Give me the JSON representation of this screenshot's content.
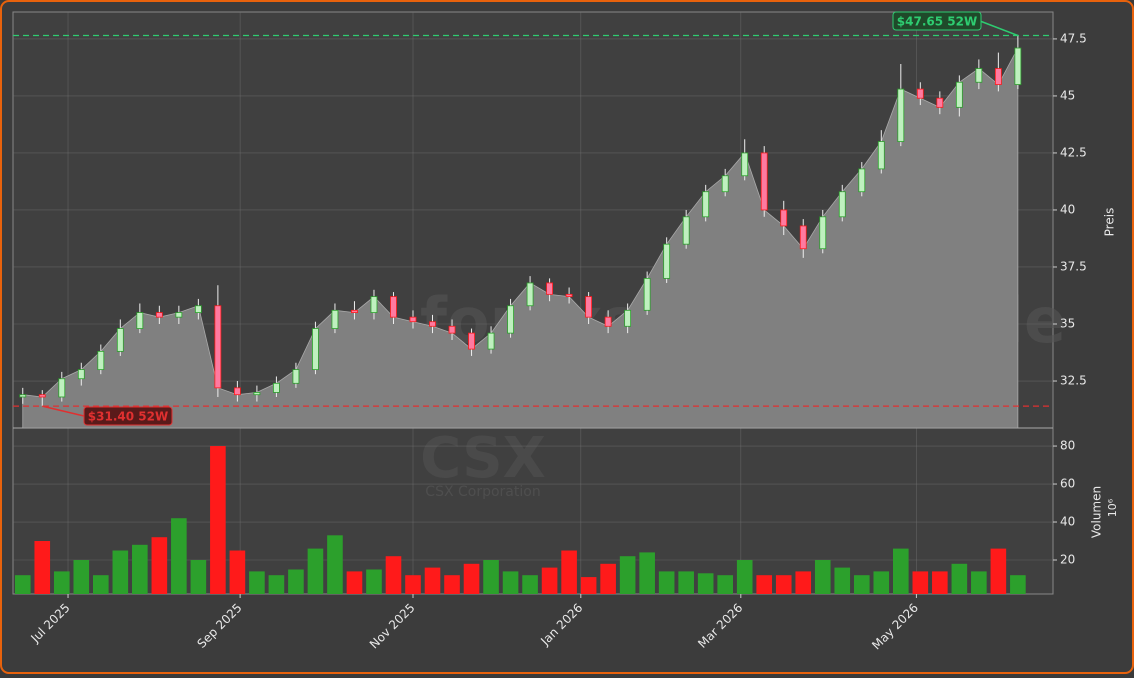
{
  "chart_data": {
    "type": "candlestick",
    "watermark": "forexsignale.trade",
    "symbol": "CSX",
    "company": "CSX Corporation",
    "y_label": "Preis",
    "y2_label": "Volumen",
    "y2_scale_label": "10⁶",
    "categories": [
      null,
      null,
      null,
      null,
      null,
      null,
      null,
      null,
      null,
      null,
      null,
      null,
      null,
      null,
      null,
      null,
      null,
      null,
      null,
      null,
      null,
      null,
      null,
      null,
      null,
      null,
      null,
      null,
      null,
      null,
      null,
      null,
      null,
      null,
      null,
      null,
      null,
      null,
      null,
      null,
      null,
      null,
      null,
      null,
      null,
      null,
      null,
      null,
      null,
      null,
      null,
      null
    ],
    "open": [
      31.8,
      31.9,
      31.8,
      32.6,
      33.0,
      33.8,
      34.8,
      35.5,
      35.3,
      35.5,
      35.8,
      32.2,
      31.9,
      32.0,
      32.4,
      33.0,
      34.8,
      35.6,
      35.5,
      36.2,
      35.3,
      35.1,
      34.9,
      34.6,
      33.9,
      34.6,
      35.8,
      36.8,
      36.3,
      36.2,
      35.3,
      34.9,
      35.6,
      37.0,
      38.5,
      39.7,
      40.8,
      41.5,
      42.5,
      40.0,
      39.3,
      38.3,
      39.7,
      40.8,
      41.8,
      43.0,
      45.3,
      44.9,
      44.5,
      45.6,
      46.2,
      45.5
    ],
    "high": [
      32.2,
      32.1,
      32.9,
      33.3,
      34.1,
      35.2,
      35.9,
      35.8,
      35.8,
      36.1,
      36.7,
      32.5,
      32.3,
      32.7,
      33.3,
      35.1,
      35.9,
      36.0,
      36.5,
      36.4,
      35.6,
      35.4,
      35.2,
      34.8,
      34.9,
      36.1,
      37.1,
      37.0,
      36.6,
      36.4,
      35.6,
      35.9,
      37.3,
      38.8,
      40.0,
      41.1,
      41.8,
      43.1,
      42.8,
      40.4,
      39.6,
      40.0,
      41.1,
      42.1,
      43.5,
      46.4,
      45.6,
      45.2,
      45.9,
      46.6,
      46.9,
      47.65
    ],
    "low": [
      31.5,
      31.4,
      31.6,
      32.3,
      32.8,
      33.6,
      34.6,
      35.0,
      35.0,
      35.2,
      31.8,
      31.6,
      31.6,
      31.8,
      32.2,
      32.8,
      34.6,
      35.2,
      35.2,
      35.0,
      34.8,
      34.6,
      34.3,
      33.6,
      33.7,
      34.4,
      35.6,
      36.0,
      35.9,
      35.0,
      34.6,
      34.6,
      35.4,
      36.8,
      38.3,
      39.5,
      40.6,
      41.3,
      39.7,
      38.9,
      37.9,
      38.1,
      39.5,
      40.6,
      41.6,
      42.8,
      44.6,
      44.2,
      44.1,
      45.3,
      45.2,
      45.3
    ],
    "close": [
      31.9,
      31.8,
      32.6,
      33.0,
      33.8,
      34.8,
      35.5,
      35.3,
      35.5,
      35.8,
      32.2,
      31.9,
      32.0,
      32.4,
      33.0,
      34.8,
      35.6,
      35.5,
      36.2,
      35.3,
      35.1,
      34.9,
      34.6,
      33.9,
      34.6,
      35.8,
      36.8,
      36.3,
      36.2,
      35.3,
      34.9,
      35.6,
      37.0,
      38.5,
      39.7,
      40.8,
      41.5,
      42.5,
      40.0,
      39.3,
      38.3,
      39.7,
      40.8,
      41.8,
      43.0,
      45.3,
      44.9,
      44.5,
      45.6,
      46.2,
      45.5,
      47.1
    ],
    "volume": [
      12,
      30,
      14,
      20,
      12,
      25,
      28,
      32,
      42,
      20,
      80,
      25,
      14,
      12,
      15,
      26,
      33,
      14,
      15,
      22,
      12,
      16,
      12,
      18,
      20,
      14,
      12,
      16,
      25,
      11,
      18,
      22,
      24,
      14,
      14,
      13,
      12,
      20,
      12,
      12,
      14,
      20,
      16,
      12,
      14,
      26,
      14,
      14,
      18,
      14,
      26,
      12
    ],
    "up_color": "#2ca02c",
    "down_color": "#ff1a1a",
    "area_color": "#808080",
    "xlim": [
      -0.5,
      52.8
    ],
    "xticks": [
      {
        "value": 2.32,
        "label": "Jul 2025"
      },
      {
        "value": 11.14,
        "label": "Sep 2025"
      },
      {
        "value": 20.0,
        "label": "Nov 2025"
      },
      {
        "value": 28.6,
        "label": "Jan 2026"
      },
      {
        "value": 36.8,
        "label": "Mar 2026"
      },
      {
        "value": 45.8,
        "label": "May 2026"
      }
    ],
    "ylim": [
      30.44,
      48.68
    ],
    "yticks": [
      32.5,
      35.0,
      37.5,
      40.0,
      42.5,
      45.0,
      47.5
    ],
    "y2lim": [
      2.1,
      89.5
    ],
    "y2ticks": [
      20,
      40,
      60,
      80
    ],
    "grid": true,
    "high_52w": {
      "value": 47.65,
      "label": "$47.65 52W",
      "color": "#2ecc71"
    },
    "low_52w": {
      "value": 31.4,
      "label": "$31.40 52W",
      "color": "#e03030"
    }
  }
}
